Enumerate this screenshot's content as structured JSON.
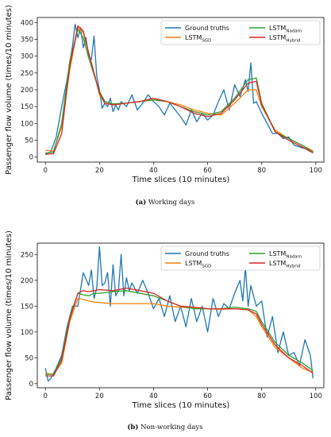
{
  "colors": {
    "ground": "#1f77b4",
    "sgd": "#ff7f0e",
    "nadam": "#2ca02c",
    "hybrid": "#d62728"
  },
  "legend": {
    "ground": "Ground truths",
    "sgd_base": "LSTM",
    "sgd_sub": "SGD",
    "nadam_base": "LSTM",
    "nadam_sub": "Nadam",
    "hybrid_base": "LSTM",
    "hybrid_sub": "Hybrid"
  },
  "chart_data": [
    {
      "type": "line",
      "caption_letter": "(a)",
      "caption_text": " Working days",
      "xlabel": "Time slices (10 minutes)",
      "ylabel": "Passenger flow volume (times/10 minutes)",
      "xlim": [
        -3,
        103
      ],
      "ylim": [
        -15,
        415
      ],
      "xticks": [
        0,
        20,
        40,
        60,
        80,
        100
      ],
      "yticks": [
        0,
        50,
        100,
        150,
        200,
        250,
        300,
        350,
        400
      ],
      "legend_position": "upper-right",
      "series": [
        {
          "name": "Ground truths",
          "key": "ground",
          "x": [
            0,
            2,
            4,
            6,
            8,
            10,
            11,
            12,
            13,
            14,
            15,
            16,
            17,
            18,
            19,
            20,
            21,
            22,
            23,
            24,
            25,
            26,
            27,
            28,
            30,
            32,
            34,
            36,
            38,
            40,
            42,
            44,
            46,
            48,
            50,
            52,
            54,
            56,
            58,
            60,
            62,
            64,
            66,
            68,
            70,
            72,
            74,
            75,
            76,
            77,
            78,
            80,
            82,
            84,
            86,
            88,
            90,
            92,
            94,
            96,
            98,
            99
          ],
          "y": [
            10,
            15,
            60,
            150,
            230,
            330,
            395,
            355,
            385,
            325,
            355,
            300,
            290,
            360,
            240,
            200,
            145,
            160,
            150,
            175,
            135,
            155,
            140,
            165,
            150,
            185,
            140,
            160,
            185,
            165,
            150,
            125,
            160,
            140,
            120,
            95,
            140,
            105,
            130,
            110,
            125,
            165,
            200,
            140,
            215,
            180,
            230,
            195,
            280,
            160,
            165,
            130,
            100,
            70,
            70,
            55,
            60,
            35,
            30,
            25,
            20,
            15
          ]
        },
        {
          "name": "LSTMSGD",
          "key": "sgd",
          "x": [
            0,
            3,
            6,
            9,
            12,
            14,
            16,
            18,
            20,
            22,
            25,
            30,
            35,
            40,
            45,
            50,
            55,
            60,
            65,
            70,
            75,
            78,
            80,
            85,
            90,
            95,
            99
          ],
          "y": [
            20,
            18,
            90,
            260,
            385,
            370,
            310,
            250,
            185,
            160,
            155,
            160,
            165,
            170,
            165,
            155,
            140,
            130,
            125,
            160,
            200,
            200,
            150,
            80,
            55,
            35,
            18
          ]
        },
        {
          "name": "LSTMNadam",
          "key": "nadam",
          "x": [
            0,
            3,
            6,
            9,
            12,
            14,
            16,
            18,
            20,
            22,
            25,
            30,
            35,
            40,
            45,
            50,
            55,
            60,
            65,
            70,
            75,
            78,
            80,
            85,
            90,
            95,
            99
          ],
          "y": [
            12,
            15,
            100,
            285,
            380,
            355,
            295,
            245,
            195,
            165,
            158,
            160,
            165,
            170,
            165,
            150,
            135,
            125,
            135,
            175,
            230,
            235,
            160,
            75,
            55,
            35,
            15
          ]
        },
        {
          "name": "LSTMHybrid",
          "key": "hybrid",
          "x": [
            0,
            3,
            6,
            9,
            12,
            14,
            16,
            18,
            20,
            22,
            25,
            30,
            35,
            40,
            45,
            50,
            55,
            60,
            65,
            70,
            75,
            78,
            80,
            85,
            90,
            95,
            99
          ],
          "y": [
            8,
            10,
            70,
            270,
            390,
            375,
            310,
            250,
            190,
            160,
            155,
            160,
            165,
            175,
            165,
            150,
            130,
            120,
            130,
            170,
            220,
            225,
            155,
            75,
            50,
            30,
            12
          ]
        }
      ]
    },
    {
      "type": "line",
      "caption_letter": "(b)",
      "caption_text": " Non-working days",
      "xlabel": "Time slices (10 minutes)",
      "ylabel": "Passenger flow volume (times/10 minutes)",
      "xlim": [
        -3,
        103
      ],
      "ylim": [
        -8,
        272
      ],
      "xticks": [
        0,
        20,
        40,
        60,
        80,
        100
      ],
      "yticks": [
        0,
        50,
        100,
        150,
        200,
        250
      ],
      "legend_position": "upper-right",
      "series": [
        {
          "name": "Ground truths",
          "key": "ground",
          "x": [
            0,
            1,
            2,
            4,
            6,
            8,
            10,
            12,
            14,
            16,
            17,
            18,
            19,
            20,
            21,
            22,
            23,
            24,
            25,
            26,
            27,
            28,
            29,
            30,
            31,
            32,
            34,
            36,
            38,
            40,
            42,
            44,
            46,
            48,
            50,
            52,
            54,
            56,
            58,
            60,
            62,
            64,
            66,
            68,
            70,
            72,
            73,
            74,
            75,
            76,
            78,
            80,
            82,
            84,
            86,
            88,
            90,
            92,
            94,
            96,
            98,
            99
          ],
          "y": [
            30,
            5,
            10,
            30,
            55,
            110,
            150,
            150,
            215,
            190,
            220,
            165,
            185,
            265,
            190,
            195,
            215,
            150,
            230,
            170,
            180,
            250,
            170,
            205,
            180,
            195,
            175,
            200,
            175,
            145,
            165,
            130,
            170,
            120,
            150,
            110,
            165,
            120,
            150,
            100,
            165,
            130,
            155,
            145,
            175,
            200,
            160,
            225,
            150,
            190,
            150,
            160,
            90,
            130,
            60,
            100,
            55,
            60,
            35,
            85,
            55,
            10
          ]
        },
        {
          "name": "LSTMSGD",
          "key": "sgd",
          "x": [
            0,
            3,
            6,
            9,
            12,
            14,
            16,
            18,
            20,
            25,
            30,
            35,
            40,
            45,
            50,
            55,
            60,
            65,
            70,
            75,
            78,
            80,
            85,
            90,
            95,
            99
          ],
          "y": [
            20,
            18,
            40,
            120,
            165,
            163,
            160,
            158,
            157,
            155,
            155,
            155,
            155,
            150,
            148,
            146,
            145,
            144,
            145,
            143,
            130,
            110,
            70,
            50,
            30,
            22
          ]
        },
        {
          "name": "LSTMNadam",
          "key": "nadam",
          "x": [
            0,
            3,
            6,
            9,
            12,
            14,
            16,
            18,
            20,
            25,
            30,
            35,
            40,
            45,
            50,
            55,
            60,
            65,
            70,
            75,
            78,
            80,
            85,
            90,
            95,
            99
          ],
          "y": [
            18,
            18,
            50,
            130,
            175,
            172,
            170,
            175,
            175,
            178,
            180,
            175,
            170,
            160,
            150,
            145,
            145,
            145,
            148,
            145,
            140,
            120,
            80,
            55,
            40,
            25
          ]
        },
        {
          "name": "LSTMHybrid",
          "key": "hybrid",
          "x": [
            0,
            3,
            6,
            9,
            12,
            14,
            16,
            18,
            20,
            25,
            30,
            35,
            40,
            45,
            50,
            55,
            60,
            65,
            70,
            75,
            78,
            80,
            85,
            90,
            95,
            99
          ],
          "y": [
            15,
            15,
            45,
            125,
            175,
            180,
            178,
            180,
            182,
            180,
            185,
            180,
            175,
            160,
            150,
            148,
            145,
            145,
            145,
            143,
            135,
            115,
            75,
            50,
            35,
            20
          ]
        }
      ]
    }
  ]
}
